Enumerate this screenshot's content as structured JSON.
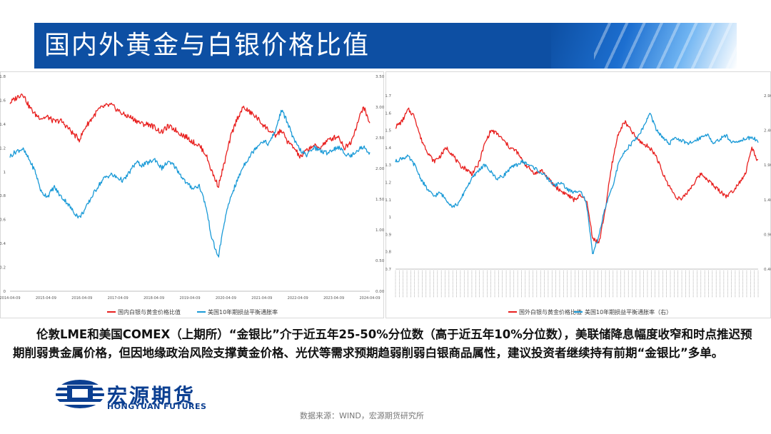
{
  "header": {
    "title": "国内外黄金与白银价格比值"
  },
  "colors": {
    "red": "#e8201f",
    "blue": "#1a9ad7",
    "brand": "#0b3f91",
    "title_bg": "#0d4fa3"
  },
  "chart_data": [
    {
      "type": "line",
      "x_tick_labels": [
        "2014-04-09",
        "2015-04-09",
        "2016-04-09",
        "2017-04-09",
        "2018-04-09",
        "2019-04-09",
        "2020-04-09",
        "2021-04-09",
        "2022-04-09",
        "2023-04-09",
        "2024-04-09"
      ],
      "left_ticks": [
        "0",
        "0.2",
        "0.4",
        "0.6",
        "0.8",
        "1",
        "1.2",
        "1.4",
        "1.6",
        "1.8"
      ],
      "ylim_left": [
        0,
        1.8
      ],
      "right_ticks": [
        "0.00",
        "0.50",
        "1.00",
        "1.50",
        "2.00",
        "2.50",
        "3.00",
        "3.50"
      ],
      "ylim_right": [
        0,
        3.5
      ],
      "series": [
        {
          "name": "国内白银与黄金价格比值",
          "axis": "left",
          "values": [
            1.58,
            1.62,
            1.66,
            1.55,
            1.48,
            1.45,
            1.46,
            1.42,
            1.43,
            1.38,
            1.32,
            1.27,
            1.38,
            1.45,
            1.52,
            1.55,
            1.56,
            1.52,
            1.48,
            1.46,
            1.43,
            1.4,
            1.4,
            1.37,
            1.33,
            1.38,
            1.36,
            1.32,
            1.29,
            1.25,
            1.22,
            1.15,
            1.0,
            0.88,
            1.08,
            1.3,
            1.45,
            1.54,
            1.5,
            1.46,
            1.4,
            1.35,
            1.3,
            1.35,
            1.25,
            1.2,
            1.12,
            1.18,
            1.22,
            1.2,
            1.25,
            1.28,
            1.3,
            1.2,
            1.25,
            1.4,
            1.55,
            1.4
          ]
        },
        {
          "name": "美国10年期损益平衡通胀率",
          "axis": "right",
          "values": [
            2.2,
            2.28,
            2.32,
            2.15,
            1.95,
            1.6,
            1.55,
            1.7,
            1.55,
            1.45,
            1.3,
            1.2,
            1.35,
            1.55,
            1.72,
            1.85,
            1.9,
            1.85,
            1.8,
            1.95,
            2.1,
            2.05,
            2.1,
            2.15,
            2.0,
            2.1,
            2.05,
            1.9,
            1.75,
            1.68,
            1.72,
            1.4,
            0.85,
            0.55,
            1.15,
            1.55,
            1.8,
            2.05,
            2.2,
            2.35,
            2.45,
            2.4,
            2.6,
            2.95,
            2.75,
            2.45,
            2.3,
            2.2,
            2.35,
            2.3,
            2.25,
            2.3,
            2.35,
            2.25,
            2.2,
            2.3,
            2.35,
            2.25
          ]
        }
      ]
    },
    {
      "type": "line",
      "left_ticks": [
        "0.7",
        "0.8",
        "0.9",
        "1",
        "1.1",
        "1.2",
        "1.3",
        "1.4",
        "1.5",
        "1.6",
        "1.7"
      ],
      "ylim_left": [
        0.7,
        1.7
      ],
      "right_ticks": [
        "0.40",
        "0.90",
        "1.40",
        "1.90",
        "2.40",
        "2.90"
      ],
      "ylim_right": [
        0.4,
        2.9
      ],
      "series": [
        {
          "name": "国外白银与黄金价格比值",
          "axis": "left",
          "values": [
            1.52,
            1.55,
            1.62,
            1.58,
            1.45,
            1.38,
            1.32,
            1.35,
            1.4,
            1.36,
            1.3,
            1.28,
            1.25,
            1.3,
            1.42,
            1.5,
            1.48,
            1.44,
            1.4,
            1.38,
            1.32,
            1.28,
            1.25,
            1.27,
            1.22,
            1.18,
            1.15,
            1.13,
            1.1,
            1.12,
            1.1,
            0.88,
            0.85,
            1.05,
            1.3,
            1.48,
            1.55,
            1.5,
            1.45,
            1.42,
            1.4,
            1.35,
            1.25,
            1.18,
            1.12,
            1.1,
            1.15,
            1.2,
            1.25,
            1.22,
            1.18,
            1.15,
            1.12,
            1.15,
            1.2,
            1.25,
            1.4,
            1.32
          ]
        },
        {
          "name": "美国10年期损益平衡通胀率（右）",
          "axis": "right",
          "values": [
            1.95,
            2.0,
            2.02,
            1.9,
            1.7,
            1.55,
            1.45,
            1.5,
            1.4,
            1.3,
            1.35,
            1.55,
            1.7,
            1.82,
            1.9,
            1.8,
            1.7,
            1.75,
            1.85,
            1.9,
            1.95,
            1.9,
            1.85,
            1.78,
            1.7,
            1.6,
            1.65,
            1.55,
            1.5,
            1.55,
            1.35,
            0.6,
            0.9,
            1.3,
            1.55,
            1.9,
            2.1,
            2.2,
            2.3,
            2.45,
            2.65,
            2.4,
            2.3,
            2.2,
            2.3,
            2.25,
            2.2,
            2.25,
            2.3,
            2.35,
            2.2,
            2.28,
            2.32,
            2.22,
            2.25,
            2.28,
            2.3,
            2.25
          ]
        }
      ]
    }
  ],
  "body": {
    "text": "伦敦LME和美国COMEX（上期所）“金银比”介于近五年25-50%分位数（高于近五年10%分位数），美联储降息幅度收窄和时点推迟预期削弱贵金属价格，但因地缘政治风险支撑黄金价格、光伏等需求预期趋弱削弱白银商品属性，建议投资者继续持有前期“金银比”多单。"
  },
  "logo": {
    "name": "宏源期货",
    "english": "HONGYUAN FUTURES"
  },
  "footer": {
    "source": "数据来源：WIND，宏源期货研究所"
  }
}
